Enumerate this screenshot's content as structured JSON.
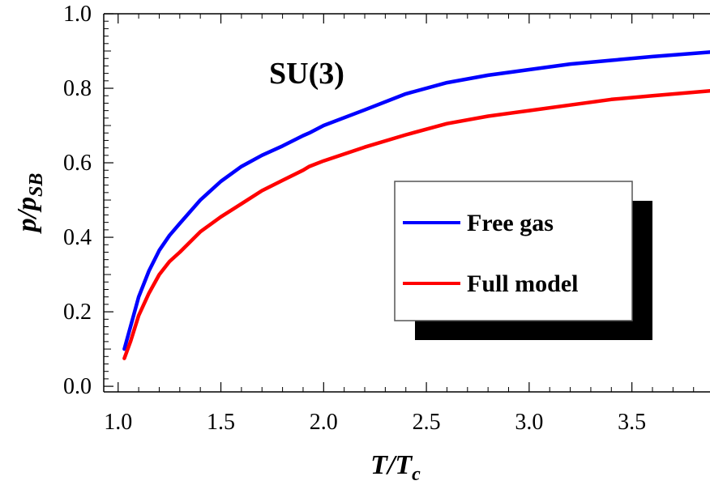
{
  "chart_data": {
    "type": "line",
    "annotation": "SU(3)",
    "xlabel_main": "T/T",
    "xlabel_sub": "c",
    "ylabel_main": "p/p",
    "ylabel_sub": "SB",
    "xlim": [
      0.93,
      3.88
    ],
    "ylim": [
      -0.015,
      1.0
    ],
    "xticks": [
      1.0,
      1.5,
      2.0,
      2.5,
      3.0,
      3.5
    ],
    "xtick_labels": [
      "1.0",
      "1.5",
      "2.0",
      "2.5",
      "3.0",
      "3.5"
    ],
    "yticks": [
      0.0,
      0.2,
      0.4,
      0.6,
      0.8,
      1.0
    ],
    "ytick_labels": [
      "0.0",
      "0.2",
      "0.4",
      "0.6",
      "0.8",
      "1.0"
    ],
    "legend_position": "center-right",
    "series": [
      {
        "name": "Free gas",
        "color": "#0000ff",
        "x": [
          1.03,
          1.06,
          1.1,
          1.15,
          1.2,
          1.25,
          1.3,
          1.4,
          1.5,
          1.6,
          1.7,
          1.8,
          1.9,
          1.93,
          2.0,
          2.2,
          2.4,
          2.6,
          2.8,
          3.0,
          3.2,
          3.4,
          3.6,
          3.88
        ],
        "y": [
          0.1,
          0.16,
          0.24,
          0.31,
          0.365,
          0.405,
          0.437,
          0.5,
          0.55,
          0.59,
          0.62,
          0.645,
          0.673,
          0.68,
          0.7,
          0.742,
          0.785,
          0.815,
          0.835,
          0.85,
          0.865,
          0.875,
          0.885,
          0.897
        ]
      },
      {
        "name": "Full model",
        "color": "#ff0000",
        "x": [
          1.03,
          1.06,
          1.1,
          1.15,
          1.2,
          1.25,
          1.3,
          1.4,
          1.5,
          1.6,
          1.7,
          1.8,
          1.9,
          1.93,
          2.0,
          2.2,
          2.4,
          2.6,
          2.8,
          3.0,
          3.2,
          3.4,
          3.6,
          3.88
        ],
        "y": [
          0.075,
          0.12,
          0.19,
          0.25,
          0.3,
          0.335,
          0.36,
          0.415,
          0.455,
          0.49,
          0.525,
          0.553,
          0.58,
          0.59,
          0.605,
          0.642,
          0.675,
          0.705,
          0.725,
          0.74,
          0.755,
          0.77,
          0.78,
          0.793
        ]
      }
    ]
  }
}
